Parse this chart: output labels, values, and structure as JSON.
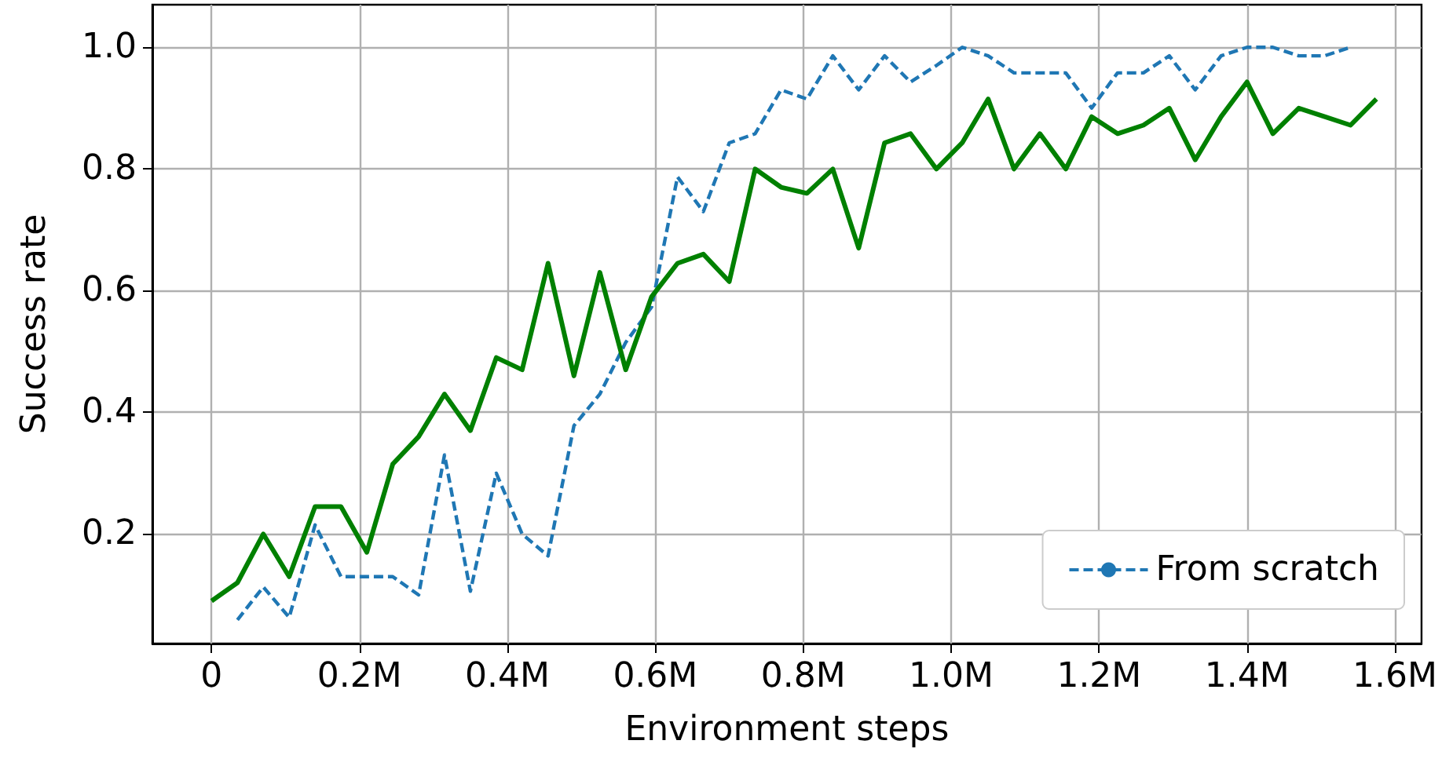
{
  "chart_data": {
    "type": "line",
    "xlabel": "Environment steps",
    "ylabel": "Success rate",
    "xlim": [
      -0.08,
      1.636
    ],
    "ylim": [
      0.02,
      1.07
    ],
    "xticks": [
      0,
      {
        "value": 0.2,
        "label": "0.2M"
      },
      {
        "value": 0.4,
        "label": "0.4M"
      },
      {
        "value": 0.6,
        "label": "0.6M"
      },
      {
        "value": 0.8,
        "label": "0.8M"
      },
      {
        "value": 1.0,
        "label": "1.0M"
      },
      {
        "value": 1.2,
        "label": "1.2M"
      },
      {
        "value": 1.4,
        "label": "1.4M"
      },
      {
        "value": 1.6,
        "label": "1.6M"
      }
    ],
    "yticks": [
      0.2,
      0.4,
      0.6,
      0.8,
      {
        "value": 1.0,
        "label": "1.0"
      }
    ],
    "grid": true,
    "legend": "bottom right",
    "marker": "none",
    "series": [
      {
        "color": "#008000",
        "line_style": "solid",
        "x": [
          0,
          0.035,
          0.07,
          0.105,
          0.14,
          0.175,
          0.21,
          0.245,
          0.28,
          0.315,
          0.35,
          0.385,
          0.42,
          0.455,
          0.49,
          0.525,
          0.56,
          0.595,
          0.63,
          0.665,
          0.7,
          0.735,
          0.77,
          0.805,
          0.84,
          0.875,
          0.91,
          0.945,
          0.98,
          1.015,
          1.05,
          1.085,
          1.12,
          1.155,
          1.19,
          1.225,
          1.26,
          1.295,
          1.33,
          1.365,
          1.4,
          1.435,
          1.47,
          1.505,
          1.54,
          1.575
        ],
        "values": [
          0.09,
          0.12,
          0.2,
          0.13,
          0.245,
          0.245,
          0.17,
          0.315,
          0.36,
          0.43,
          0.37,
          0.49,
          0.47,
          0.645,
          0.46,
          0.63,
          0.47,
          0.59,
          0.645,
          0.66,
          0.615,
          0.8,
          0.77,
          0.76,
          0.8,
          0.67,
          0.843,
          0.858,
          0.8,
          0.843,
          0.915,
          0.8,
          0.858,
          0.8,
          0.886,
          0.858,
          0.872,
          0.9,
          0.815,
          0.886,
          0.943,
          0.858,
          0.9,
          0.886,
          0.872,
          0.915
        ]
      },
      {
        "name": "From scratch",
        "color": "#1f77b4",
        "line_style": "dashed",
        "x": [
          0.035,
          0.07,
          0.105,
          0.14,
          0.175,
          0.21,
          0.245,
          0.28,
          0.315,
          0.35,
          0.385,
          0.42,
          0.455,
          0.49,
          0.525,
          0.56,
          0.595,
          0.63,
          0.665,
          0.7,
          0.735,
          0.77,
          0.805,
          0.84,
          0.875,
          0.91,
          0.945,
          0.98,
          1.015,
          1.05,
          1.085,
          1.12,
          1.155,
          1.19,
          1.225,
          1.26,
          1.295,
          1.33,
          1.365,
          1.4,
          1.435,
          1.47,
          1.505,
          1.54
        ],
        "values": [
          0.059,
          0.113,
          0.063,
          0.215,
          0.13,
          0.13,
          0.13,
          0.1,
          0.33,
          0.106,
          0.3,
          0.2,
          0.164,
          0.378,
          0.43,
          0.515,
          0.573,
          0.787,
          0.73,
          0.843,
          0.858,
          0.93,
          0.915,
          0.986,
          0.93,
          0.986,
          0.943,
          0.97,
          1.0,
          0.986,
          0.958,
          0.958,
          0.958,
          0.9,
          0.958,
          0.958,
          0.986,
          0.93,
          0.986,
          1.0,
          1.0,
          0.986,
          0.986,
          1.0
        ]
      }
    ]
  }
}
